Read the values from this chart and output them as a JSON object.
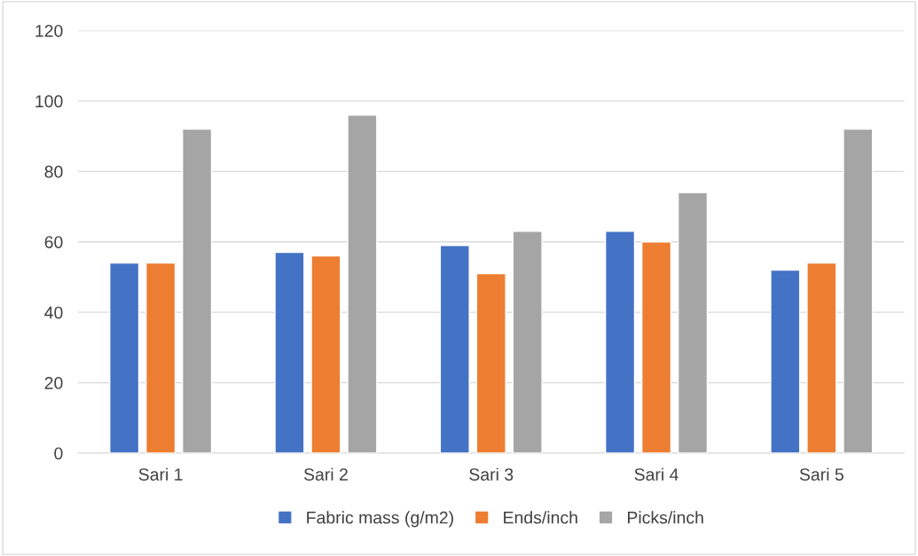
{
  "chart_data": {
    "type": "bar",
    "categories": [
      "Sari 1",
      "Sari 2",
      "Sari 3",
      "Sari 4",
      "Sari 5"
    ],
    "series": [
      {
        "name": "Fabric mass (g/m2)",
        "color": "#4472c4",
        "values": [
          54,
          57,
          59,
          63,
          52
        ]
      },
      {
        "name": "Ends/inch",
        "color": "#ed7d31",
        "values": [
          54,
          56,
          51,
          60,
          54
        ]
      },
      {
        "name": "Picks/inch",
        "color": "#a5a5a5",
        "values": [
          92,
          96,
          63,
          74,
          92
        ]
      }
    ],
    "ylim": [
      0,
      120
    ],
    "yticks": [
      0,
      20,
      40,
      60,
      80,
      100,
      120
    ],
    "grid": "y",
    "legend": "bottom"
  }
}
